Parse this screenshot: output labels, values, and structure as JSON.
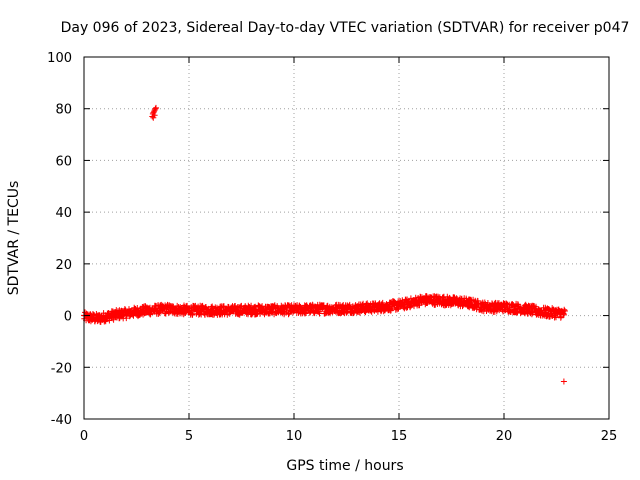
{
  "chart_data": {
    "type": "scatter",
    "title": "Day 096 of 2023, Sidereal Day-to-day VTEC variation (SDTVAR) for receiver p047",
    "xlabel": "GPS time / hours",
    "ylabel": "SDTVAR / TECUs",
    "xlim": [
      0,
      25
    ],
    "ylim": [
      -40,
      100
    ],
    "xticks": [
      "0",
      "5",
      "10",
      "15",
      "20",
      "25"
    ],
    "yticks": [
      "-40",
      "-20",
      "0",
      "20",
      "40",
      "60",
      "80",
      "100"
    ],
    "grid": true,
    "marker": "+",
    "series": [
      {
        "name": "SDTVAR",
        "color": "#ff0000",
        "trend": {
          "x": [
            0.0,
            0.3,
            0.7,
            1.0,
            1.5,
            2.0,
            2.5,
            3.0,
            3.5,
            4.0,
            5.0,
            6.0,
            7.0,
            8.0,
            9.0,
            10.0,
            11.0,
            12.0,
            13.0,
            14.0,
            15.0,
            15.5,
            16.0,
            16.5,
            17.0,
            17.5,
            18.0,
            18.5,
            19.0,
            19.5,
            20.0,
            20.5,
            21.0,
            21.5,
            22.0,
            22.5,
            22.9
          ],
          "y": [
            -0.5,
            -0.8,
            -1.2,
            -0.5,
            0.3,
            0.8,
            1.5,
            2.0,
            2.3,
            2.5,
            2.0,
            2.0,
            2.0,
            2.2,
            2.2,
            2.3,
            2.5,
            2.6,
            2.8,
            3.2,
            4.0,
            4.8,
            5.8,
            6.0,
            5.8,
            5.5,
            5.2,
            4.5,
            3.5,
            3.2,
            3.3,
            3.0,
            2.5,
            1.8,
            1.2,
            1.0,
            0.8
          ]
        },
        "band_half_width": 1.8,
        "outliers": [
          {
            "x": 3.25,
            "y": 77.0
          },
          {
            "x": 3.28,
            "y": 78.0
          },
          {
            "x": 3.31,
            "y": 78.5
          },
          {
            "x": 3.34,
            "y": 79.0
          },
          {
            "x": 3.37,
            "y": 79.5
          },
          {
            "x": 3.4,
            "y": 80.0
          },
          {
            "x": 3.43,
            "y": 80.3
          },
          {
            "x": 3.3,
            "y": 76.5
          },
          {
            "x": 3.36,
            "y": 77.5
          },
          {
            "x": 22.85,
            "y": -25.5
          }
        ]
      }
    ]
  }
}
